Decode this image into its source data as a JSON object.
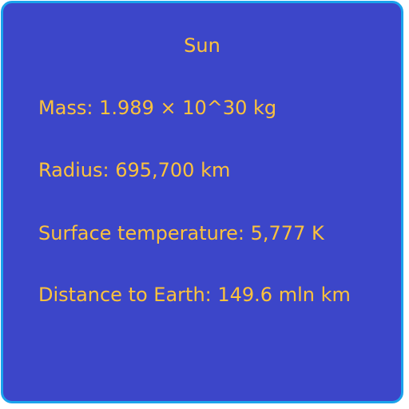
{
  "card": {
    "title": "Sun",
    "lines": [
      "Mass: 1.989 × 10^30 kg",
      "Radius: 695,700 km",
      "Surface temperature: 5,777 K",
      "Distance to Earth: 149.6 mln km"
    ]
  },
  "colors": {
    "background": "#3c46c9",
    "border": "#1aa3ec",
    "text": "#fcc23c"
  }
}
